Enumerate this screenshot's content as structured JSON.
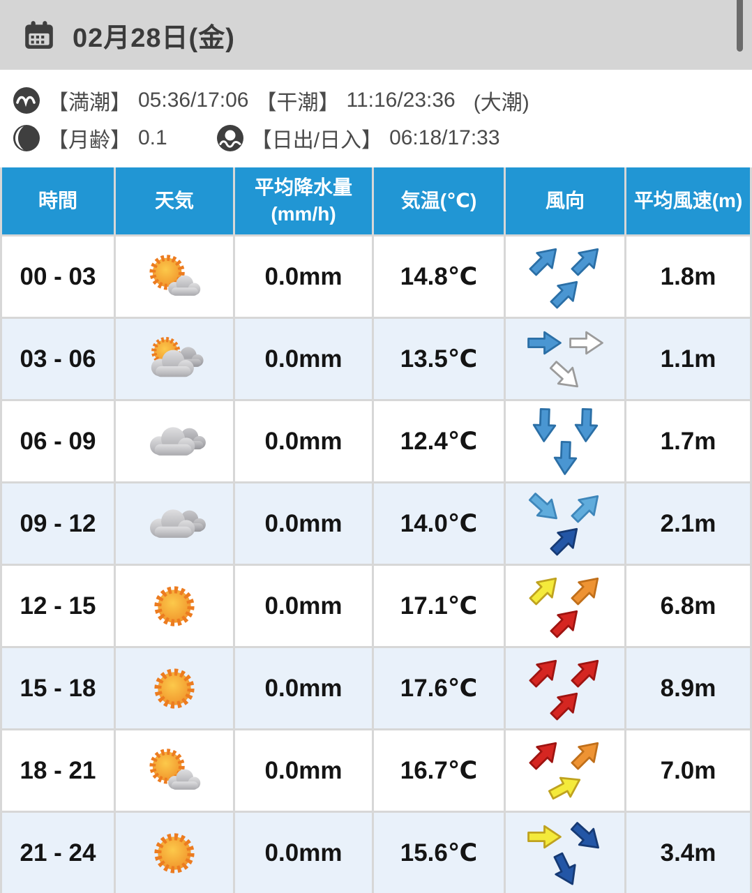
{
  "header": {
    "title": "02月28日(金)"
  },
  "info": {
    "tide": {
      "icon": "wave-icon",
      "high_label": "【満潮】",
      "high_value": "05:36/17:06",
      "low_label": "【干潮】",
      "low_value": "11:16/23:36",
      "tide_type": "(大潮)"
    },
    "moon": {
      "icon": "moon-icon",
      "label": "【月齢】",
      "value": "0.1"
    },
    "sunrise": {
      "icon": "sunrise-icon",
      "label": "【日出/日入】",
      "value": "06:18/17:33"
    }
  },
  "table": {
    "columns": [
      {
        "label": "時間",
        "sub": ""
      },
      {
        "label": "天気",
        "sub": ""
      },
      {
        "label": "平均降水量",
        "sub": "(mm/h)"
      },
      {
        "label": "気温(℃)",
        "sub": ""
      },
      {
        "label": "風向",
        "sub": ""
      },
      {
        "label": "平均風速(m)",
        "sub": ""
      }
    ],
    "rows": [
      {
        "time": "00 - 03",
        "weather": "sun-cloud",
        "precip": "0.0mm",
        "temp": "14.8℃",
        "wind": [
          {
            "dir": "NE",
            "color": "blue"
          },
          {
            "dir": "NE",
            "color": "blue"
          },
          {
            "dir": "NE",
            "color": "blue"
          }
        ],
        "speed": "1.8m"
      },
      {
        "time": "03 - 06",
        "weather": "cloud-sun",
        "precip": "0.0mm",
        "temp": "13.5℃",
        "wind": [
          {
            "dir": "E",
            "color": "blue"
          },
          {
            "dir": "E",
            "color": "white"
          },
          {
            "dir": "SE",
            "color": "white"
          }
        ],
        "speed": "1.1m"
      },
      {
        "time": "06 - 09",
        "weather": "cloud",
        "precip": "0.0mm",
        "temp": "12.4℃",
        "wind": [
          {
            "dir": "S",
            "color": "blue"
          },
          {
            "dir": "S",
            "color": "blue"
          },
          {
            "dir": "S",
            "color": "blue"
          }
        ],
        "speed": "1.7m"
      },
      {
        "time": "09 - 12",
        "weather": "cloud",
        "precip": "0.0mm",
        "temp": "14.0℃",
        "wind": [
          {
            "dir": "SE",
            "color": "lightblue"
          },
          {
            "dir": "NE",
            "color": "lightblue"
          },
          {
            "dir": "NE",
            "color": "navy"
          }
        ],
        "speed": "2.1m"
      },
      {
        "time": "12 - 15",
        "weather": "sun",
        "precip": "0.0mm",
        "temp": "17.1℃",
        "wind": [
          {
            "dir": "NE",
            "color": "yellow"
          },
          {
            "dir": "NE",
            "color": "orange"
          },
          {
            "dir": "NE",
            "color": "red"
          }
        ],
        "speed": "6.8m"
      },
      {
        "time": "15 - 18",
        "weather": "sun",
        "precip": "0.0mm",
        "temp": "17.6℃",
        "wind": [
          {
            "dir": "NE",
            "color": "red"
          },
          {
            "dir": "NE",
            "color": "red"
          },
          {
            "dir": "NE",
            "color": "red"
          }
        ],
        "speed": "8.9m"
      },
      {
        "time": "18 - 21",
        "weather": "sun-cloud",
        "precip": "0.0mm",
        "temp": "16.7℃",
        "wind": [
          {
            "dir": "NE",
            "color": "red"
          },
          {
            "dir": "NE",
            "color": "orange"
          },
          {
            "dir": "ENE",
            "color": "yellow"
          }
        ],
        "speed": "7.0m"
      },
      {
        "time": "21 - 24",
        "weather": "sun",
        "precip": "0.0mm",
        "temp": "15.6℃",
        "wind": [
          {
            "dir": "E",
            "color": "yellow"
          },
          {
            "dir": "SE",
            "color": "navy"
          },
          {
            "dir": "SSE",
            "color": "navy"
          }
        ],
        "speed": "3.4m"
      }
    ]
  },
  "colors": {
    "header_blue": "#2196d4",
    "row_alt_blue": "#e9f1fa",
    "arrow_blue": "#4a96d2",
    "arrow_lightblue": "#60acdc",
    "arrow_white": "#ffffff",
    "arrow_yellow": "#f4ea3b",
    "arrow_orange": "#ee9333",
    "arrow_red": "#d52621",
    "arrow_navy": "#2356a6"
  }
}
